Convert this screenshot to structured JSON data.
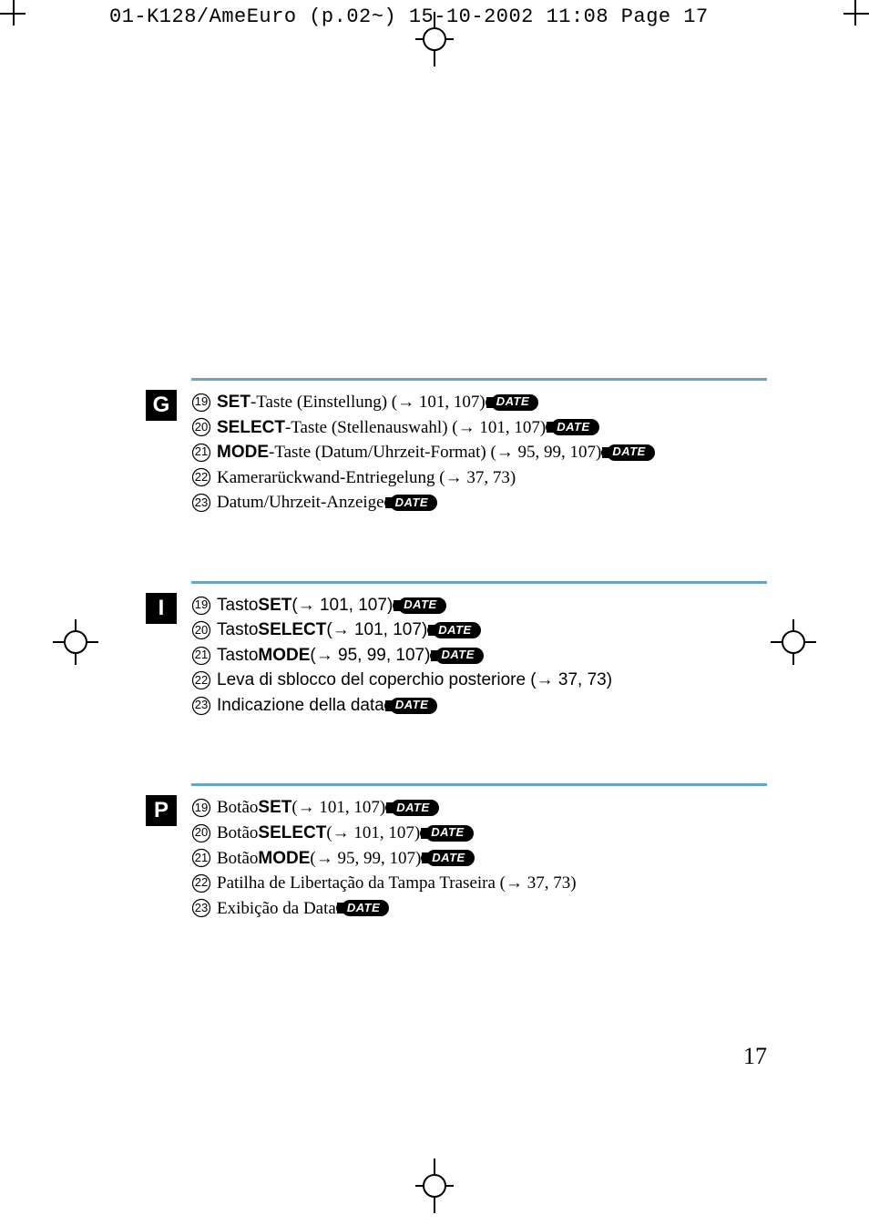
{
  "slug": "01-K128/AmeEuro (p.02~)  15-10-2002  11:08  Page 17",
  "page_number": "17",
  "date_pill_label": "DATE",
  "accent_color": "#66a6c4",
  "sections": [
    {
      "lang_code": "G",
      "text_font": "serif",
      "items": [
        {
          "n": "19",
          "bold": "SET",
          "rest": "-Taste (Einstellung) (→ 101, 107)",
          "date": true
        },
        {
          "n": "20",
          "bold": "SELECT",
          "rest": "-Taste (Stellenauswahl) (→ 101, 107)",
          "date": true
        },
        {
          "n": "21",
          "bold": "MODE",
          "rest": "-Taste (Datum/Uhrzeit-Format) (→ 95, 99, 107)",
          "date": true
        },
        {
          "n": "22",
          "bold": "",
          "rest": "Kamerarückwand-Entriegelung (→ 37, 73)",
          "date": false
        },
        {
          "n": "23",
          "bold": "",
          "rest": "Datum/Uhrzeit-Anzeige",
          "date": true
        }
      ]
    },
    {
      "lang_code": "I",
      "text_font": "sans",
      "items": [
        {
          "n": "19",
          "pre": "Tasto ",
          "bold": "SET",
          "rest": " (→ 101, 107)",
          "date": true
        },
        {
          "n": "20",
          "pre": "Tasto ",
          "bold": "SELECT",
          "rest": " (→ 101, 107)",
          "date": true
        },
        {
          "n": "21",
          "pre": "Tasto ",
          "bold": "MODE",
          "rest": " (→ 95, 99, 107)",
          "date": true
        },
        {
          "n": "22",
          "pre": "",
          "bold": "",
          "rest": "Leva di sblocco del coperchio posteriore (→ 37, 73)",
          "date": false
        },
        {
          "n": "23",
          "pre": "",
          "bold": "",
          "rest": "Indicazione della data",
          "date": true
        }
      ]
    },
    {
      "lang_code": "P",
      "text_font": "serif",
      "items": [
        {
          "n": "19",
          "pre": "Botão ",
          "bold": "SET",
          "rest": " (→ 101, 107)",
          "date": true
        },
        {
          "n": "20",
          "pre": "Botão ",
          "bold": "SELECT",
          "rest": " (→ 101, 107)",
          "date": true
        },
        {
          "n": "21",
          "pre": "Botão ",
          "bold": "MODE",
          "rest": " (→ 95, 99, 107)",
          "date": true
        },
        {
          "n": "22",
          "pre": "",
          "bold": "",
          "rest": "Patilha de Libertação da Tampa Traseira (→ 37, 73)",
          "date": false
        },
        {
          "n": "23",
          "pre": "",
          "bold": "",
          "rest": "Exibição da Data",
          "date": true
        }
      ]
    }
  ]
}
